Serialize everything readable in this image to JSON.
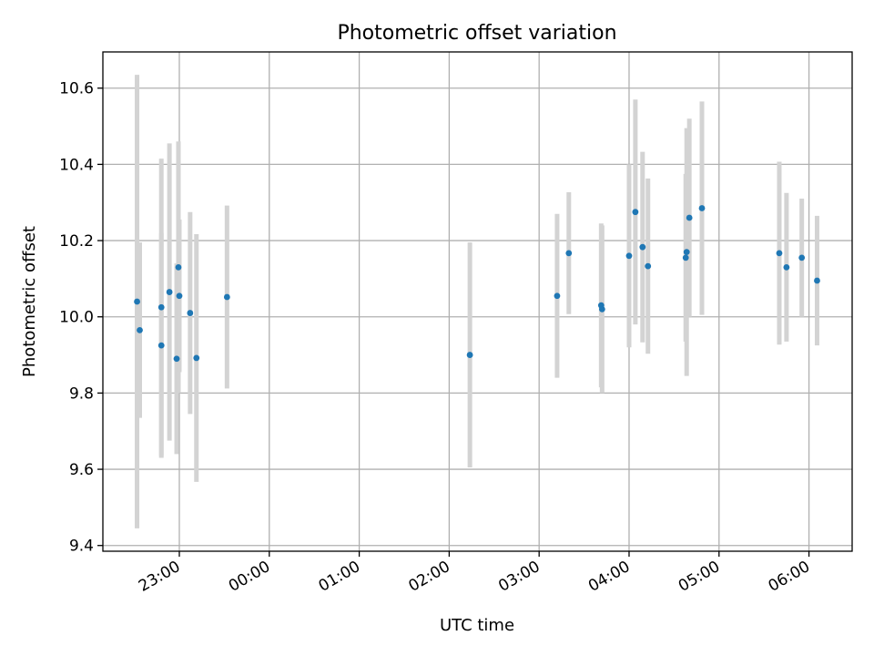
{
  "chart_data": {
    "type": "scatter",
    "title": "Photometric offset variation",
    "xlabel": "UTC time",
    "ylabel": "Photometric offset",
    "xlim_hours": [
      -1.85,
      6.48
    ],
    "ylim": [
      9.385,
      10.695
    ],
    "x_ticks": [
      {
        "value": -1.0,
        "label": "23:00"
      },
      {
        "value": 0.0,
        "label": "00:00"
      },
      {
        "value": 1.0,
        "label": "01:00"
      },
      {
        "value": 2.0,
        "label": "02:00"
      },
      {
        "value": 3.0,
        "label": "03:00"
      },
      {
        "value": 4.0,
        "label": "04:00"
      },
      {
        "value": 5.0,
        "label": "05:00"
      },
      {
        "value": 6.0,
        "label": "06:00"
      }
    ],
    "y_ticks": [
      {
        "value": 9.4,
        "label": "9.4"
      },
      {
        "value": 9.6,
        "label": "9.6"
      },
      {
        "value": 9.8,
        "label": "9.8"
      },
      {
        "value": 10.0,
        "label": "10.0"
      },
      {
        "value": 10.2,
        "label": "10.2"
      },
      {
        "value": 10.4,
        "label": "10.4"
      },
      {
        "value": 10.6,
        "label": "10.6"
      }
    ],
    "grid": true,
    "point_color": "#1f77b4",
    "errorbar_color": "#d3d3d3",
    "points": [
      {
        "time": "22:32",
        "x": -1.47,
        "y": 10.04,
        "err": 0.595
      },
      {
        "time": "22:34",
        "x": -1.44,
        "y": 9.965,
        "err": 0.23
      },
      {
        "time": "22:48",
        "x": -1.2,
        "y": 10.025,
        "err": 0.39
      },
      {
        "time": "22:48",
        "x": -1.2,
        "y": 9.925,
        "err": 0.295
      },
      {
        "time": "22:53",
        "x": -1.11,
        "y": 10.065,
        "err": 0.39
      },
      {
        "time": "22:58",
        "x": -1.03,
        "y": 9.89,
        "err": 0.25
      },
      {
        "time": "22:59",
        "x": -1.01,
        "y": 10.13,
        "err": 0.33
      },
      {
        "time": "23:00",
        "x": -1.0,
        "y": 10.055,
        "err": 0.2
      },
      {
        "time": "23:07",
        "x": -0.88,
        "y": 10.01,
        "err": 0.265
      },
      {
        "time": "23:11",
        "x": -0.81,
        "y": 9.892,
        "err": 0.325
      },
      {
        "time": "23:32",
        "x": -0.47,
        "y": 10.052,
        "err": 0.24
      },
      {
        "time": "02:14",
        "x": 2.23,
        "y": 9.9,
        "err": 0.295
      },
      {
        "time": "03:12",
        "x": 3.2,
        "y": 10.055,
        "err": 0.215
      },
      {
        "time": "03:20",
        "x": 3.33,
        "y": 10.167,
        "err": 0.16
      },
      {
        "time": "03:41",
        "x": 3.69,
        "y": 10.03,
        "err": 0.215
      },
      {
        "time": "03:42",
        "x": 3.7,
        "y": 10.02,
        "err": 0.22
      },
      {
        "time": "04:00",
        "x": 4.0,
        "y": 10.16,
        "err": 0.24
      },
      {
        "time": "04:04",
        "x": 4.07,
        "y": 10.275,
        "err": 0.295
      },
      {
        "time": "04:09",
        "x": 4.15,
        "y": 10.183,
        "err": 0.25
      },
      {
        "time": "04:13",
        "x": 4.21,
        "y": 10.133,
        "err": 0.23
      },
      {
        "time": "04:38",
        "x": 4.63,
        "y": 10.155,
        "err": 0.22
      },
      {
        "time": "04:38",
        "x": 4.64,
        "y": 10.17,
        "err": 0.325
      },
      {
        "time": "04:40",
        "x": 4.67,
        "y": 10.26,
        "err": 0.26
      },
      {
        "time": "04:49",
        "x": 4.81,
        "y": 10.285,
        "err": 0.28
      },
      {
        "time": "05:40",
        "x": 5.67,
        "y": 10.167,
        "err": 0.24
      },
      {
        "time": "05:45",
        "x": 5.75,
        "y": 10.13,
        "err": 0.195
      },
      {
        "time": "05:55",
        "x": 5.92,
        "y": 10.155,
        "err": 0.155
      },
      {
        "time": "06:06",
        "x": 6.09,
        "y": 10.095,
        "err": 0.17
      }
    ]
  }
}
